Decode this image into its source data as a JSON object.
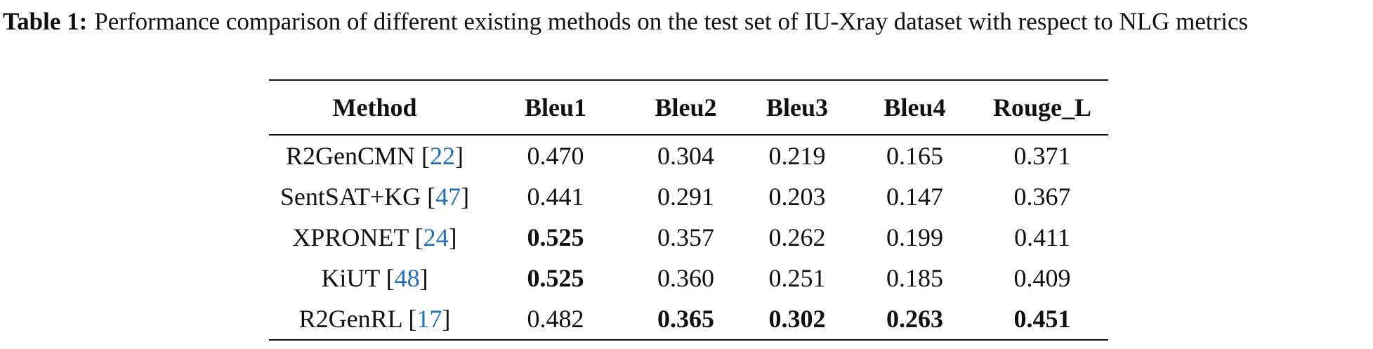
{
  "caption": {
    "label": "Table 1:",
    "text": "Performance comparison of different existing methods on the test set of IU-Xray dataset with respect to NLG metrics"
  },
  "table": {
    "header": [
      "Method",
      "Bleu1",
      "Bleu2",
      "Bleu3",
      "Bleu4",
      "Rouge_L"
    ],
    "rows": [
      {
        "method": "R2GenCMN",
        "ref": "22",
        "values": [
          "0.470",
          "0.304",
          "0.219",
          "0.165",
          "0.371"
        ],
        "bold": [
          false,
          false,
          false,
          false,
          false
        ]
      },
      {
        "method": "SentSAT+KG",
        "ref": "47",
        "values": [
          "0.441",
          "0.291",
          "0.203",
          "0.147",
          "0.367"
        ],
        "bold": [
          false,
          false,
          false,
          false,
          false
        ]
      },
      {
        "method": "XPRONET",
        "ref": "24",
        "values": [
          "0.525",
          "0.357",
          "0.262",
          "0.199",
          "0.411"
        ],
        "bold": [
          true,
          false,
          false,
          false,
          false
        ]
      },
      {
        "method": "KiUT",
        "ref": "48",
        "values": [
          "0.525",
          "0.360",
          "0.251",
          "0.185",
          "0.409"
        ],
        "bold": [
          true,
          false,
          false,
          false,
          false
        ]
      },
      {
        "method": "R2GenRL",
        "ref": "17",
        "values": [
          "0.482",
          "0.365",
          "0.302",
          "0.263",
          "0.451"
        ],
        "bold": [
          false,
          true,
          true,
          true,
          true
        ]
      }
    ]
  }
}
